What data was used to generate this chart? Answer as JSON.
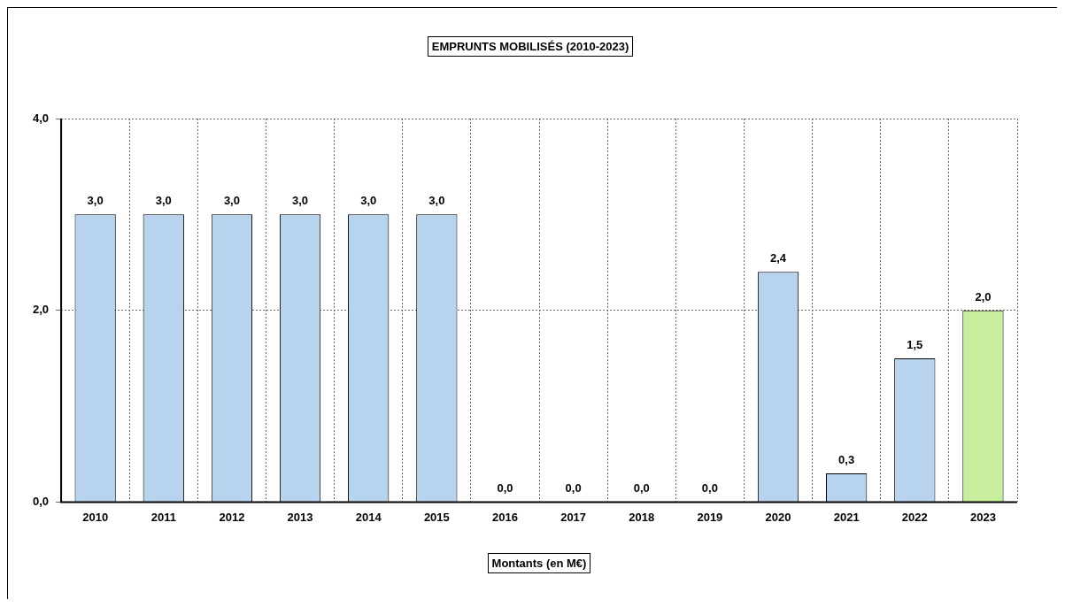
{
  "chart_data": {
    "type": "bar",
    "title": "EMPRUNTS MOBILISÉS (2010-2023)",
    "xlabel": "Montants (en M€)",
    "categories": [
      "2010",
      "2011",
      "2012",
      "2013",
      "2014",
      "2015",
      "2016",
      "2017",
      "2018",
      "2019",
      "2020",
      "2021",
      "2022",
      "2023"
    ],
    "values": [
      3.0,
      3.0,
      3.0,
      3.0,
      3.0,
      3.0,
      0,
      0,
      0,
      0,
      2.4,
      0.3,
      1.5,
      2.0
    ],
    "colors": [
      "#b7d3ee",
      "#b7d3ee",
      "#b7d3ee",
      "#b7d3ee",
      "#b7d3ee",
      "#b7d3ee",
      "#b7d3ee",
      "#b7d3ee",
      "#b7d3ee",
      "#b7d3ee",
      "#b7d3ee",
      "#b7d3ee",
      "#b7d3ee",
      "#c6ee9c"
    ],
    "value_labels": [
      "3,0",
      "3,0",
      "3,0",
      "3,0",
      "3,0",
      "3,0",
      "0,0",
      "0,0",
      "0,0",
      "0,0",
      "2,4",
      "0,3",
      "1,5",
      "2,0"
    ],
    "ylim": [
      0,
      4
    ],
    "yticks": [
      {
        "value": 0,
        "label": "0,0"
      },
      {
        "value": 2,
        "label": "2,0"
      },
      {
        "value": 4,
        "label": "4,0"
      }
    ],
    "grid": true,
    "legend": false
  }
}
